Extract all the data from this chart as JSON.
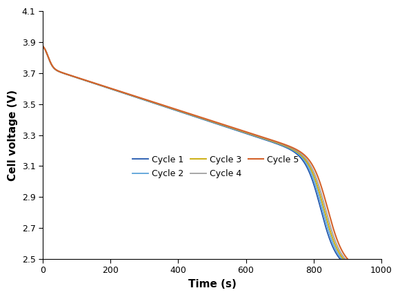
{
  "title": "",
  "xlabel": "Time (s)",
  "ylabel": "Cell voltage (V)",
  "xlim": [
    0,
    1000
  ],
  "ylim": [
    2.5,
    4.1
  ],
  "yticks": [
    2.5,
    2.7,
    2.9,
    3.1,
    3.3,
    3.5,
    3.7,
    3.9,
    4.1
  ],
  "xticks": [
    0,
    200,
    400,
    600,
    800,
    1000
  ],
  "cycles": [
    {
      "label": "Cycle 1",
      "color": "#2056ae",
      "lw": 1.3,
      "t_end": 878
    },
    {
      "label": "Cycle 2",
      "color": "#5ba3d9",
      "lw": 1.3,
      "t_end": 883
    },
    {
      "label": "Cycle 3",
      "color": "#c8a800",
      "lw": 1.3,
      "t_end": 888
    },
    {
      "label": "Cycle 4",
      "color": "#a0a0a0",
      "lw": 1.3,
      "t_end": 893
    },
    {
      "label": "Cycle 5",
      "color": "#d4622a",
      "lw": 1.5,
      "t_end": 900
    }
  ],
  "v_start": 3.875,
  "v_end": 2.5,
  "figsize": [
    5.8,
    4.3
  ],
  "dpi": 100,
  "legend_ncol": 3,
  "legend_fontsize": 9.0,
  "axis_label_fontsize": 11,
  "tick_fontsize": 9.0,
  "background_color": "#ffffff"
}
